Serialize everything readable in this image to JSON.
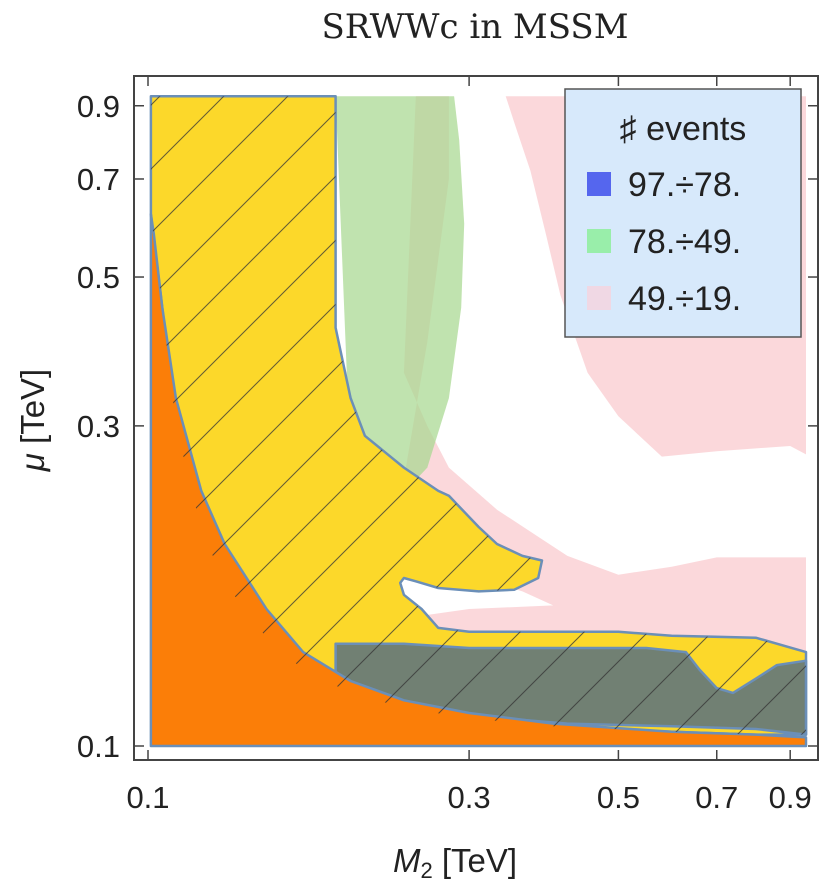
{
  "chart_data": {
    "type": "heatmap",
    "title": "SRWWc in MSSM",
    "xlabel": {
      "symbol": "M",
      "sub": "2",
      "unit": " [TeV]"
    },
    "ylabel": {
      "symbol": "μ",
      "unit": " [TeV]"
    },
    "x_scale": "log",
    "y_scale": "log",
    "xlim": [
      0.1,
      0.95
    ],
    "ylim": [
      0.1,
      0.95
    ],
    "x_ticks": [
      {
        "value": 0.1,
        "label": "0.1"
      },
      {
        "value": 0.3,
        "label": "0.3"
      },
      {
        "value": 0.5,
        "label": "0.5"
      },
      {
        "value": 0.7,
        "label": "0.7"
      },
      {
        "value": 0.9,
        "label": "0.9"
      }
    ],
    "y_ticks": [
      {
        "value": 0.1,
        "label": "0.1"
      },
      {
        "value": 0.3,
        "label": "0.3"
      },
      {
        "value": 0.5,
        "label": "0.5"
      },
      {
        "value": 0.7,
        "label": "0.7"
      },
      {
        "value": 0.9,
        "label": "0.9"
      }
    ],
    "legend": {
      "title": "♯ events",
      "placement": "top-right",
      "entries": [
        {
          "label": "97.÷78.",
          "color": "#5566ee"
        },
        {
          "label": "78.÷49.",
          "color": "#99eeaa"
        },
        {
          "label": "49.÷19.",
          "color": "#f0d8e4"
        }
      ]
    },
    "regions": [
      {
        "name": "49-19 events",
        "fill": "#f7b8bd",
        "opacity": 0.55,
        "polygon": [
          [
            0.28,
            0.93
          ],
          [
            0.95,
            0.93
          ],
          [
            0.95,
            0.272
          ],
          [
            0.9,
            0.28
          ],
          [
            0.7,
            0.275
          ],
          [
            0.58,
            0.27
          ],
          [
            0.5,
            0.31
          ],
          [
            0.45,
            0.36
          ],
          [
            0.41,
            0.47
          ],
          [
            0.39,
            0.58
          ],
          [
            0.37,
            0.72
          ],
          [
            0.35,
            0.85
          ],
          [
            0.34,
            0.93
          ],
          [
            0.28,
            0.93
          ],
          [
            0.28,
            0.7
          ],
          [
            0.26,
            0.4
          ],
          [
            0.24,
            0.25
          ],
          [
            0.22,
            0.2
          ],
          [
            0.24,
            0.185
          ],
          [
            0.3,
            0.18
          ],
          [
            0.36,
            0.17
          ],
          [
            0.4,
            0.162
          ],
          [
            0.3,
            0.16
          ],
          [
            0.24,
            0.155
          ],
          [
            0.23,
            0.145
          ],
          [
            0.4,
            0.14
          ],
          [
            0.6,
            0.138
          ],
          [
            0.95,
            0.138
          ],
          [
            0.95,
            0.191
          ],
          [
            0.8,
            0.191
          ],
          [
            0.7,
            0.191
          ],
          [
            0.6,
            0.185
          ],
          [
            0.5,
            0.18
          ],
          [
            0.42,
            0.192
          ],
          [
            0.38,
            0.205
          ],
          [
            0.33,
            0.225
          ],
          [
            0.28,
            0.26
          ],
          [
            0.26,
            0.3
          ],
          [
            0.24,
            0.36
          ],
          [
            0.25,
            0.93
          ]
        ]
      },
      {
        "name": "78-49 events",
        "fill": "#a8d890",
        "opacity": 0.72,
        "polygon": [
          [
            0.19,
            0.93
          ],
          [
            0.285,
            0.93
          ],
          [
            0.29,
            0.8
          ],
          [
            0.295,
            0.6
          ],
          [
            0.292,
            0.45
          ],
          [
            0.28,
            0.33
          ],
          [
            0.26,
            0.26
          ],
          [
            0.23,
            0.228
          ],
          [
            0.2,
            0.26
          ],
          [
            0.19,
            0.93
          ]
        ]
      },
      {
        "name": "78-49 events lower band",
        "fill": "#a8d890",
        "opacity": 0.72,
        "polygon": [
          [
            0.19,
            0.143
          ],
          [
            0.4,
            0.142
          ],
          [
            0.6,
            0.14
          ],
          [
            0.95,
            0.135
          ],
          [
            0.95,
            0.102
          ],
          [
            0.19,
            0.104
          ]
        ]
      },
      {
        "name": "yellow envelope",
        "fill": "#fcd82a",
        "opacity": 1,
        "polygon": [
          [
            0.101,
            0.93
          ],
          [
            0.19,
            0.93
          ],
          [
            0.19,
            0.42
          ],
          [
            0.2,
            0.33
          ],
          [
            0.21,
            0.29
          ],
          [
            0.24,
            0.26
          ],
          [
            0.27,
            0.24
          ],
          [
            0.28,
            0.236
          ],
          [
            0.31,
            0.212
          ],
          [
            0.33,
            0.2
          ],
          [
            0.36,
            0.192
          ],
          [
            0.385,
            0.189
          ],
          [
            0.38,
            0.178
          ],
          [
            0.35,
            0.171
          ],
          [
            0.31,
            0.17
          ],
          [
            0.27,
            0.172
          ],
          [
            0.25,
            0.176
          ],
          [
            0.24,
            0.178
          ],
          [
            0.237,
            0.175
          ],
          [
            0.24,
            0.168
          ],
          [
            0.255,
            0.16
          ],
          [
            0.27,
            0.15
          ],
          [
            0.3,
            0.148
          ],
          [
            0.5,
            0.148
          ],
          [
            0.6,
            0.146
          ],
          [
            0.8,
            0.145
          ],
          [
            0.95,
            0.138
          ],
          [
            0.95,
            0.104
          ],
          [
            0.8,
            0.104
          ],
          [
            0.6,
            0.105
          ],
          [
            0.4,
            0.107
          ],
          [
            0.3,
            0.11
          ],
          [
            0.24,
            0.114
          ],
          [
            0.2,
            0.12
          ],
          [
            0.17,
            0.13
          ],
          [
            0.15,
            0.145
          ],
          [
            0.13,
            0.175
          ],
          [
            0.12,
            0.21
          ],
          [
            0.11,
            0.3
          ],
          [
            0.105,
            0.45
          ],
          [
            0.101,
            0.62
          ]
        ]
      },
      {
        "name": "97-78 events",
        "fill": "#4d6a86",
        "opacity": 0.8,
        "polygon": [
          [
            0.19,
            0.142
          ],
          [
            0.24,
            0.142
          ],
          [
            0.3,
            0.14
          ],
          [
            0.42,
            0.14
          ],
          [
            0.55,
            0.14
          ],
          [
            0.63,
            0.138
          ],
          [
            0.66,
            0.13
          ],
          [
            0.7,
            0.122
          ],
          [
            0.74,
            0.12
          ],
          [
            0.8,
            0.126
          ],
          [
            0.86,
            0.132
          ],
          [
            0.95,
            0.134
          ],
          [
            0.95,
            0.104
          ],
          [
            0.8,
            0.106
          ],
          [
            0.6,
            0.107
          ],
          [
            0.42,
            0.108
          ],
          [
            0.3,
            0.111
          ],
          [
            0.24,
            0.115
          ],
          [
            0.2,
            0.12
          ],
          [
            0.19,
            0.124
          ]
        ]
      },
      {
        "name": "excluded region",
        "fill": "#fb7e08",
        "opacity": 1,
        "polygon": [
          [
            0.101,
            0.1
          ],
          [
            0.101,
            0.62
          ],
          [
            0.102,
            0.58
          ],
          [
            0.105,
            0.45
          ],
          [
            0.11,
            0.33
          ],
          [
            0.12,
            0.24
          ],
          [
            0.13,
            0.2
          ],
          [
            0.15,
            0.16
          ],
          [
            0.17,
            0.138
          ],
          [
            0.2,
            0.125
          ],
          [
            0.24,
            0.117
          ],
          [
            0.3,
            0.112
          ],
          [
            0.4,
            0.108
          ],
          [
            0.6,
            0.105
          ],
          [
            0.8,
            0.104
          ],
          [
            0.95,
            0.103
          ],
          [
            0.95,
            0.1
          ]
        ]
      }
    ]
  }
}
